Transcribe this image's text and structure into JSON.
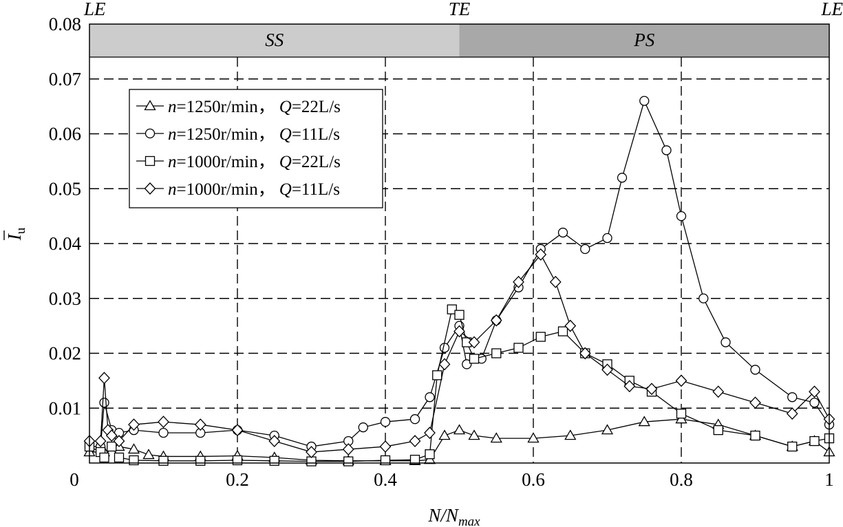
{
  "chart_data": {
    "type": "line",
    "xlabel_main": "N/N",
    "xlabel_sub": "max",
    "ylabel_main": "I",
    "ylabel_sub": "u",
    "xlim": [
      0,
      1
    ],
    "ylim": [
      0,
      0.08
    ],
    "grid": true,
    "legend_position": "top-left",
    "x_ticks": [
      {
        "value": 0,
        "label": "0"
      },
      {
        "value": 0.2,
        "label": "0.2"
      },
      {
        "value": 0.4,
        "label": "0.4"
      },
      {
        "value": 0.6,
        "label": "0.6"
      },
      {
        "value": 0.8,
        "label": "0.8"
      },
      {
        "value": 1,
        "label": "1"
      }
    ],
    "y_ticks": [
      {
        "value": 0.01,
        "label": "0.01"
      },
      {
        "value": 0.02,
        "label": "0.02"
      },
      {
        "value": 0.03,
        "label": "0.03"
      },
      {
        "value": 0.04,
        "label": "0.04"
      },
      {
        "value": 0.05,
        "label": "0.05"
      },
      {
        "value": 0.06,
        "label": "0.06"
      },
      {
        "value": 0.07,
        "label": "0.07"
      },
      {
        "value": 0.08,
        "label": "0.08"
      }
    ],
    "region_bands": [
      {
        "label": "SS",
        "x_start": 0,
        "x_end": 0.5,
        "color": "#cccccc"
      },
      {
        "label": "PS",
        "x_start": 0.5,
        "x_end": 1,
        "color": "#a8a8a8"
      }
    ],
    "top_annotations": [
      {
        "label": "LE",
        "x": 0
      },
      {
        "label": "TE",
        "x": 0.5
      },
      {
        "label": "LE",
        "x": 1
      }
    ],
    "series": [
      {
        "n_label": "n",
        "n_value": "=1250r/min，",
        "q_label": "Q",
        "q_value": "=22L/s",
        "marker": "triangle",
        "x": [
          0,
          0.02,
          0.04,
          0.06,
          0.08,
          0.1,
          0.15,
          0.2,
          0.25,
          0.3,
          0.35,
          0.4,
          0.44,
          0.46,
          0.48,
          0.5,
          0.52,
          0.55,
          0.6,
          0.65,
          0.7,
          0.75,
          0.8,
          0.85,
          0.9,
          0.95,
          0.98,
          1
        ],
        "y": [
          0.002,
          0.002,
          0.003,
          0.0025,
          0.0015,
          0.0012,
          0.0012,
          0.0013,
          0.001,
          0.0005,
          0.0004,
          0.0004,
          0.0004,
          0.0006,
          0.005,
          0.006,
          0.005,
          0.0045,
          0.0045,
          0.005,
          0.006,
          0.0075,
          0.008,
          0.007,
          0.005,
          0.003,
          0.004,
          0.002
        ]
      },
      {
        "n_label": "n",
        "n_value": "=1250r/min，",
        "q_label": "Q",
        "q_value": "=11L/s",
        "marker": "circle",
        "x": [
          0,
          0.015,
          0.02,
          0.03,
          0.04,
          0.06,
          0.1,
          0.15,
          0.2,
          0.25,
          0.3,
          0.35,
          0.37,
          0.4,
          0.44,
          0.46,
          0.48,
          0.5,
          0.51,
          0.53,
          0.55,
          0.58,
          0.61,
          0.64,
          0.67,
          0.7,
          0.72,
          0.75,
          0.78,
          0.8,
          0.83,
          0.86,
          0.9,
          0.95,
          0.98,
          1
        ],
        "y": [
          0.003,
          0.003,
          0.011,
          0.006,
          0.0055,
          0.006,
          0.0055,
          0.0055,
          0.006,
          0.005,
          0.003,
          0.004,
          0.0065,
          0.0075,
          0.008,
          0.012,
          0.021,
          0.025,
          0.018,
          0.019,
          0.026,
          0.032,
          0.039,
          0.042,
          0.039,
          0.041,
          0.052,
          0.066,
          0.057,
          0.045,
          0.03,
          0.022,
          0.017,
          0.012,
          0.011,
          0.007
        ]
      },
      {
        "n_label": "n",
        "n_value": "=1000r/min，",
        "q_label": "Q",
        "q_value": "=22L/s",
        "marker": "square",
        "x": [
          0,
          0.015,
          0.02,
          0.03,
          0.04,
          0.06,
          0.1,
          0.15,
          0.2,
          0.25,
          0.3,
          0.35,
          0.4,
          0.44,
          0.46,
          0.47,
          0.49,
          0.5,
          0.51,
          0.52,
          0.55,
          0.58,
          0.61,
          0.64,
          0.67,
          0.7,
          0.73,
          0.76,
          0.8,
          0.85,
          0.9,
          0.95,
          0.98,
          1
        ],
        "y": [
          0.003,
          0.002,
          0.001,
          0.003,
          0.001,
          0.0005,
          0.0004,
          0.0004,
          0.0005,
          0.0004,
          0.0003,
          0.0003,
          0.0005,
          0.0006,
          0.0016,
          0.016,
          0.028,
          0.027,
          0.022,
          0.019,
          0.02,
          0.021,
          0.023,
          0.024,
          0.02,
          0.018,
          0.015,
          0.013,
          0.009,
          0.006,
          0.005,
          0.003,
          0.004,
          0.0045
        ]
      },
      {
        "n_label": "n",
        "n_value": "=1000r/min，",
        "q_label": "Q",
        "q_value": "=11L/s",
        "marker": "diamond",
        "x": [
          0,
          0.015,
          0.02,
          0.025,
          0.03,
          0.04,
          0.06,
          0.1,
          0.15,
          0.2,
          0.25,
          0.3,
          0.35,
          0.4,
          0.44,
          0.46,
          0.48,
          0.5,
          0.52,
          0.55,
          0.58,
          0.61,
          0.63,
          0.65,
          0.67,
          0.7,
          0.73,
          0.76,
          0.8,
          0.85,
          0.9,
          0.95,
          0.98,
          1
        ],
        "y": [
          0.004,
          0.004,
          0.0155,
          0.006,
          0.005,
          0.004,
          0.007,
          0.0075,
          0.007,
          0.006,
          0.004,
          0.002,
          0.0025,
          0.003,
          0.004,
          0.0055,
          0.018,
          0.024,
          0.022,
          0.026,
          0.033,
          0.038,
          0.033,
          0.025,
          0.02,
          0.017,
          0.014,
          0.0135,
          0.015,
          0.013,
          0.011,
          0.009,
          0.013,
          0.008
        ]
      }
    ]
  }
}
